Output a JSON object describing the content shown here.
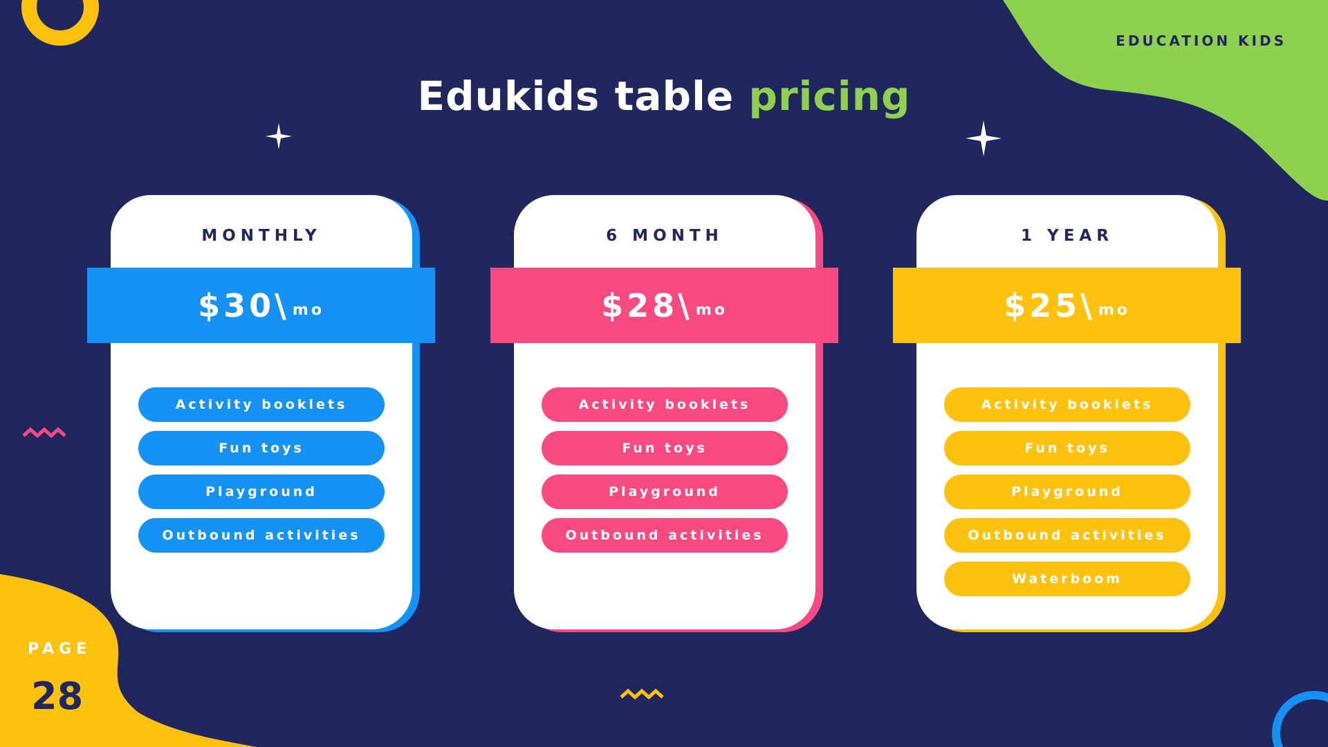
{
  "header": {
    "brand": "EDUCATION KIDS",
    "title_main": "Edukids table",
    "title_accent": "pricing"
  },
  "colors": {
    "background": "#20265e",
    "blue": "#1592f3",
    "pink": "#fb4a7f",
    "yellow": "#fec10e",
    "green": "#8dd14e"
  },
  "plans": [
    {
      "name": "MONTHLY",
      "price": "$30\\",
      "unit": "mo",
      "color": "#1592f3",
      "features": [
        "Activity booklets",
        "Fun toys",
        "Playground",
        "Outbound activities"
      ]
    },
    {
      "name": "6 MONTH",
      "price": "$28\\",
      "unit": "mo",
      "color": "#fb4a7f",
      "features": [
        "Activity booklets",
        "Fun toys",
        "Playground",
        "Outbound activities"
      ]
    },
    {
      "name": "1 YEAR",
      "price": "$25\\",
      "unit": "mo",
      "color": "#fec10e",
      "features": [
        "Activity booklets",
        "Fun toys",
        "Playground",
        "Outbound activities",
        "Waterboom"
      ]
    }
  ],
  "footer": {
    "page_label": "PAGE",
    "page_number": "28"
  }
}
